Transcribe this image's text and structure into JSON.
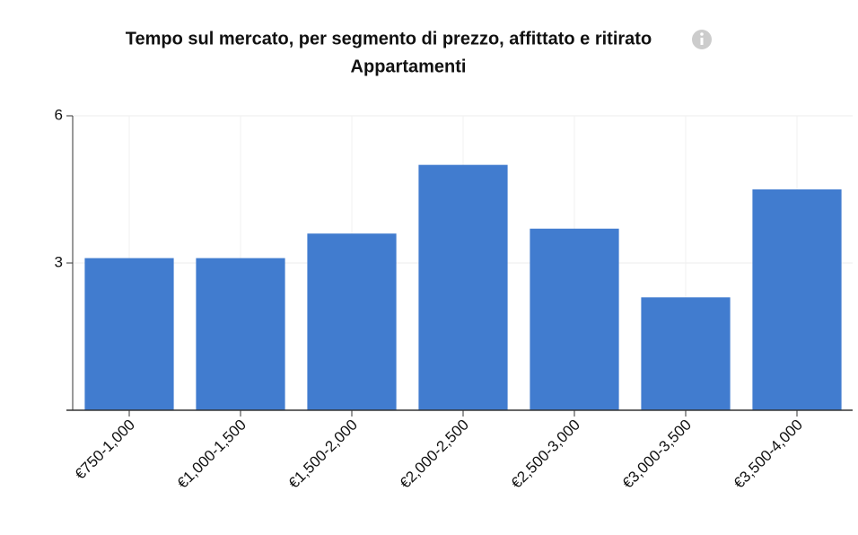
{
  "chart_data": {
    "type": "bar",
    "title": "Tempo sul mercato, per segmento di prezzo, affittato e ritirato",
    "subtitle": "Appartamenti",
    "categories": [
      "€750-1,000",
      "€1,000-1,500",
      "€1,500-2,000",
      "€2,000-2,500",
      "€2,500-3,000",
      "€3,000-3,500",
      "€3,500-4,000"
    ],
    "values": [
      3.1,
      3.1,
      3.6,
      5.0,
      3.7,
      2.3,
      4.5
    ],
    "color": "#417ccf",
    "ylim": [
      0,
      6
    ],
    "yticks": [
      3,
      6
    ],
    "grid": true
  }
}
